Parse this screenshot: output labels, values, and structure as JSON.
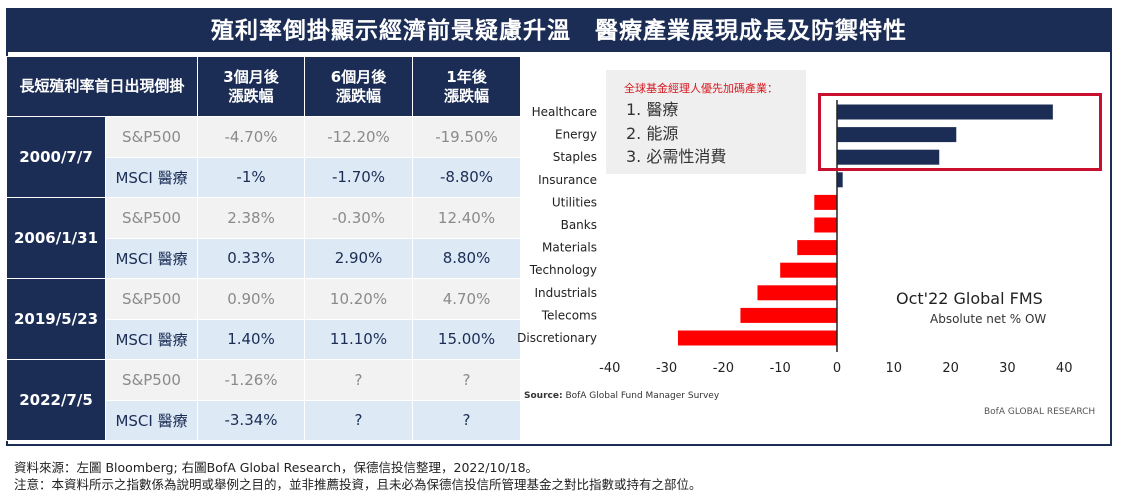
{
  "title": "殖利率倒掛顯示經濟前景疑慮升溫　醫療產業展現成長及防禦特性",
  "table": {
    "headers": [
      "長短殖利率首日出現倒掛",
      "3個月後\n漲跌幅",
      "6個月後\n漲跌幅",
      "1年後\n漲跌幅"
    ],
    "groups": [
      {
        "date": "2000/7/7",
        "rows": [
          {
            "index": "S&P500",
            "values": [
              "-4.70%",
              "-12.20%",
              "-19.50%"
            ]
          },
          {
            "index": "MSCI 醫療",
            "values": [
              "-1%",
              "-1.70%",
              "-8.80%"
            ]
          }
        ]
      },
      {
        "date": "2006/1/31",
        "rows": [
          {
            "index": "S&P500",
            "values": [
              "2.38%",
              "-0.30%",
              "12.40%"
            ]
          },
          {
            "index": "MSCI 醫療",
            "values": [
              "0.33%",
              "2.90%",
              "8.80%"
            ]
          }
        ]
      },
      {
        "date": "2019/5/23",
        "rows": [
          {
            "index": "S&P500",
            "values": [
              "0.90%",
              "10.20%",
              "4.70%"
            ]
          },
          {
            "index": "MSCI 醫療",
            "values": [
              "1.40%",
              "11.10%",
              "15.00%"
            ]
          }
        ]
      },
      {
        "date": "2022/7/5",
        "rows": [
          {
            "index": "S&P500",
            "values": [
              "-1.26%",
              "?",
              "?"
            ]
          },
          {
            "index": "MSCI 醫療",
            "values": [
              "-3.34%",
              "?",
              "?"
            ]
          }
        ]
      }
    ]
  },
  "legend": {
    "title": "全球基金經理人優先加碼產業：",
    "items": [
      "1. 醫療",
      "2. 能源",
      "3. 必需性消費"
    ]
  },
  "chart_data": {
    "type": "bar",
    "orientation": "horizontal",
    "title": "Oct'22 Global FMS",
    "subtitle": "Absolute net % OW",
    "categories": [
      "Healthcare",
      "Energy",
      "Staples",
      "Insurance",
      "Utilities",
      "Banks",
      "Materials",
      "Technology",
      "Industrials",
      "Telecoms",
      "Discretionary"
    ],
    "values": [
      38,
      21,
      18,
      1,
      -4,
      -4,
      -7,
      -10,
      -14,
      -17,
      -28
    ],
    "xlim": [
      -40,
      40
    ],
    "xticks": [
      -40,
      -30,
      -20,
      -10,
      0,
      10,
      20,
      30,
      40
    ],
    "positive_color": "#1c2d55",
    "negative_color": "#ff0000",
    "grid": false,
    "highlight": [
      "Healthcare",
      "Energy",
      "Staples"
    ],
    "highlight_color": "#c8102e"
  },
  "source": {
    "label": "Source:",
    "text": "BofA Global Fund Manager Survey"
  },
  "brand": "BofA GLOBAL RESEARCH",
  "footer": {
    "source_line": "資料來源：左圖 Bloomberg; 右圖BofA Global Research，保德信投信整理，2022/10/18。",
    "note_line": "注意：本資料所示之指數係為說明或舉例之目的，並非推薦投資，且未必為保德信投信所管理基金之對比指數或持有之部位。"
  }
}
